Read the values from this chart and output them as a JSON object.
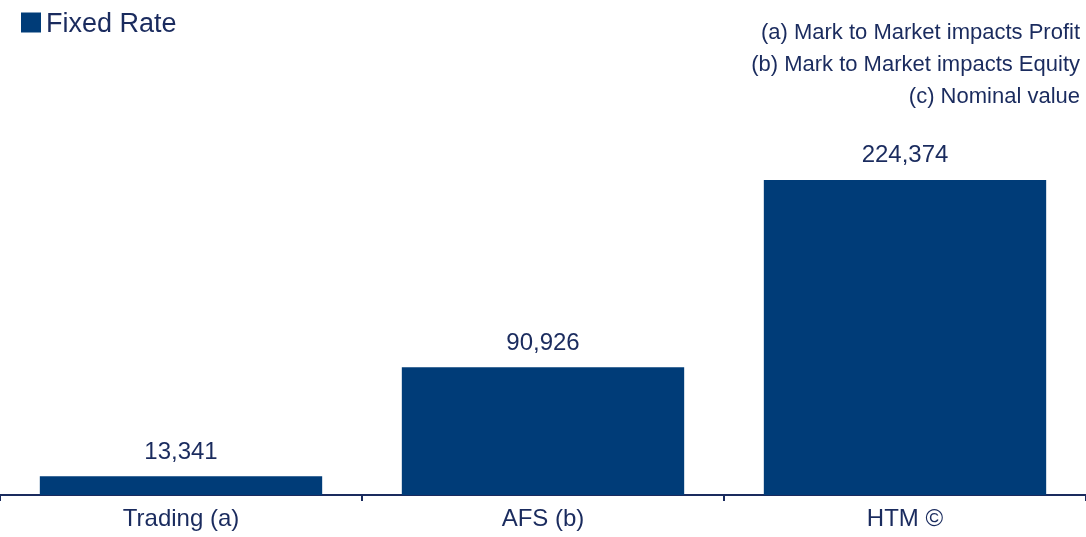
{
  "chart_data": {
    "type": "bar",
    "categories": [
      "Trading (a)",
      "AFS (b)",
      "HTM ©"
    ],
    "series": [
      {
        "name": "Fixed Rate",
        "color": "#003c78",
        "values": [
          13341,
          90926,
          224374
        ],
        "value_labels": [
          "13,341",
          "90,926",
          "224,374"
        ]
      }
    ],
    "legend": "top left",
    "grid": false,
    "annotations": [
      "(a) Mark to Market impacts Profit",
      "(b) Mark to Market impacts Equity",
      "(c) Nominal value"
    ]
  }
}
